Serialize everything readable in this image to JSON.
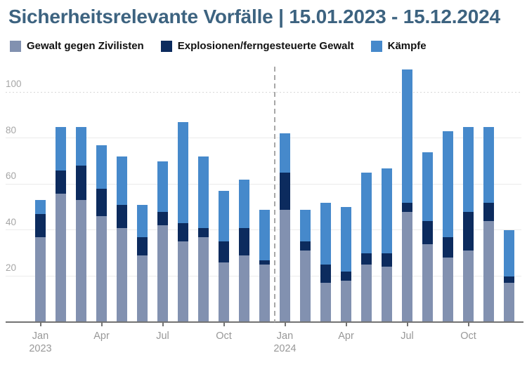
{
  "title": "Sicherheitsrelevante Vorfälle | 15.01.2023 - 15.12.2024",
  "legend": [
    {
      "label": "Gewalt gegen Zivilisten",
      "color": "#8291b0"
    },
    {
      "label": "Explosionen/ferngesteuerte Gewalt",
      "color": "#0c2b5e"
    },
    {
      "label": "Kämpfe",
      "color": "#4689cb"
    }
  ],
  "chart_data": {
    "type": "bar",
    "stacked": true,
    "title": "Sicherheitsrelevante Vorfälle | 15.01.2023 - 15.12.2024",
    "categories": [
      "Jan 2023",
      "Feb 2023",
      "Mar 2023",
      "Apr 2023",
      "May 2023",
      "Jun 2023",
      "Jul 2023",
      "Aug 2023",
      "Sep 2023",
      "Oct 2023",
      "Nov 2023",
      "Dec 2023",
      "Jan 2024",
      "Feb 2024",
      "Mar 2024",
      "Apr 2024",
      "May 2024",
      "Jun 2024",
      "Jul 2024",
      "Aug 2024",
      "Sep 2024",
      "Oct 2024",
      "Nov 2024",
      "Dec 2024"
    ],
    "series": [
      {
        "name": "Gewalt gegen Zivilisten",
        "color": "#8291b0",
        "values": [
          37,
          56,
          53,
          46,
          41,
          29,
          42,
          35,
          37,
          26,
          29,
          25,
          49,
          31,
          17,
          18,
          25,
          24,
          48,
          34,
          28,
          31,
          44,
          17
        ]
      },
      {
        "name": "Explosionen/ferngesteuerte Gewalt",
        "color": "#0c2b5e",
        "values": [
          10,
          10,
          15,
          12,
          10,
          8,
          6,
          8,
          4,
          9,
          12,
          2,
          16,
          4,
          8,
          4,
          5,
          6,
          4,
          10,
          9,
          17,
          8,
          3
        ]
      },
      {
        "name": "Kämpfe",
        "color": "#4689cb",
        "values": [
          6,
          19,
          17,
          19,
          21,
          14,
          22,
          44,
          31,
          22,
          21,
          22,
          17,
          14,
          27,
          28,
          35,
          37,
          58,
          30,
          46,
          37,
          33,
          20
        ]
      }
    ],
    "totals": [
      53,
      85,
      85,
      77,
      72,
      51,
      70,
      87,
      72,
      57,
      62,
      49,
      82,
      49,
      52,
      50,
      65,
      67,
      110,
      74,
      83,
      85,
      85,
      40
    ],
    "ylim": [
      0,
      112
    ],
    "y_ticks": [
      20,
      40,
      60,
      80,
      100
    ],
    "grid": true,
    "legend_position": "top",
    "x_tick_labels": [
      {
        "index": 0,
        "lines": [
          "Jan",
          "2023"
        ]
      },
      {
        "index": 3,
        "lines": [
          "Apr"
        ]
      },
      {
        "index": 6,
        "lines": [
          "Jul"
        ]
      },
      {
        "index": 9,
        "lines": [
          "Oct"
        ]
      },
      {
        "index": 12,
        "lines": [
          "Jan",
          "2024"
        ]
      },
      {
        "index": 15,
        "lines": [
          "Apr"
        ]
      },
      {
        "index": 18,
        "lines": [
          "Jul"
        ]
      },
      {
        "index": 21,
        "lines": [
          "Oct"
        ]
      }
    ],
    "separator_between": [
      "Dec 2023",
      "Jan 2024"
    ]
  }
}
